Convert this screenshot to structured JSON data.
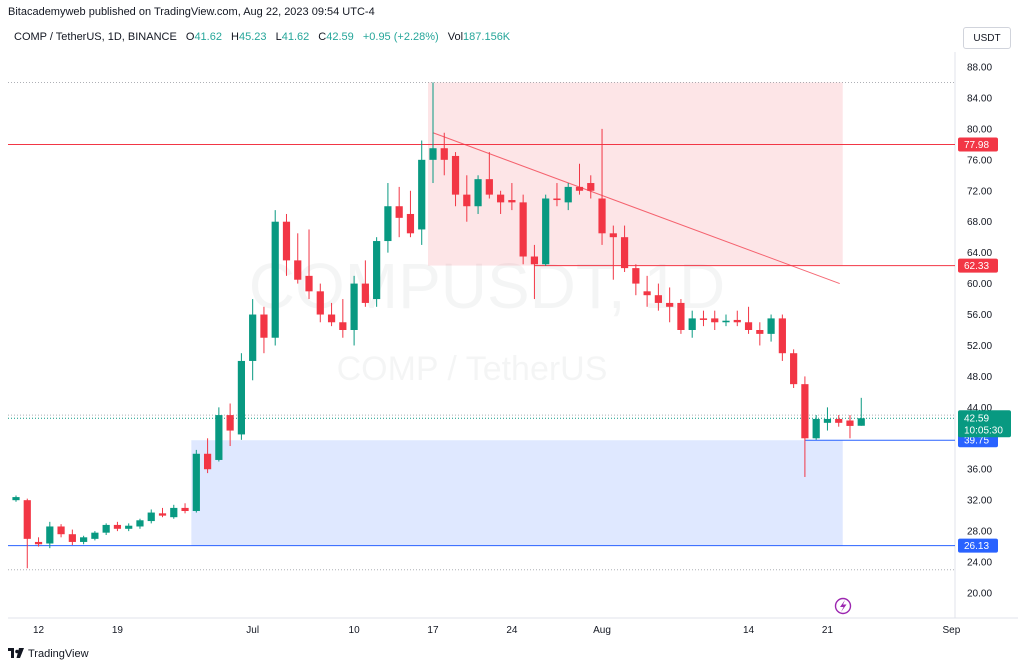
{
  "header": {
    "published": "Bitacademyweb published on TradingView.com, Aug 22, 2023 09:54 UTC-4"
  },
  "legend": {
    "symbol": "COMP / TetherUS, 1D, BINANCE",
    "o_label": "O",
    "o": "41.62",
    "h_label": "H",
    "h": "45.23",
    "l_label": "L",
    "l": "41.62",
    "c_label": "C",
    "c": "42.59",
    "change": "+0.95 (+2.28%)",
    "vol_label": "Vol",
    "vol": "187.156K"
  },
  "currency_button": "USDT",
  "watermark": {
    "ticker": "COMPUSDT, 1D",
    "name": "COMP / TetherUS"
  },
  "footer": {
    "brand": "TradingView"
  },
  "chart_data": {
    "type": "candlestick",
    "symbol": "COMP / TetherUS",
    "interval": "1D",
    "exchange": "BINANCE",
    "ylim": [
      18,
      90
    ],
    "y_ticks": [
      "88.00",
      "84.00",
      "80.00",
      "76.00",
      "72.00",
      "68.00",
      "64.00",
      "60.00",
      "56.00",
      "52.00",
      "48.00",
      "44.00",
      "40.00",
      "36.00",
      "32.00",
      "28.00",
      "24.00",
      "20.00"
    ],
    "x_ticks": [
      {
        "label": "12",
        "index": 2
      },
      {
        "label": "19",
        "index": 9
      },
      {
        "label": "Jul",
        "index": 21
      },
      {
        "label": "10",
        "index": 30
      },
      {
        "label": "17",
        "index": 37
      },
      {
        "label": "24",
        "index": 44
      },
      {
        "label": "Aug",
        "index": 52
      },
      {
        "label": "14",
        "index": 65
      },
      {
        "label": "21",
        "index": 72
      },
      {
        "label": "Sep",
        "index": 83
      }
    ],
    "candles": [
      {
        "o": 32.0,
        "h": 32.6,
        "l": 31.8,
        "c": 32.4
      },
      {
        "o": 32.0,
        "h": 32.2,
        "l": 23.2,
        "c": 27.0
      },
      {
        "o": 26.6,
        "h": 27.2,
        "l": 26.0,
        "c": 26.3
      },
      {
        "o": 26.4,
        "h": 29.2,
        "l": 25.8,
        "c": 28.6
      },
      {
        "o": 28.6,
        "h": 28.9,
        "l": 27.2,
        "c": 27.6
      },
      {
        "o": 27.6,
        "h": 28.2,
        "l": 26.2,
        "c": 26.6
      },
      {
        "o": 26.6,
        "h": 27.4,
        "l": 26.3,
        "c": 27.2
      },
      {
        "o": 27.0,
        "h": 28.0,
        "l": 26.8,
        "c": 27.8
      },
      {
        "o": 27.8,
        "h": 29.0,
        "l": 27.5,
        "c": 28.8
      },
      {
        "o": 28.8,
        "h": 29.2,
        "l": 28.0,
        "c": 28.3
      },
      {
        "o": 28.3,
        "h": 29.0,
        "l": 28.0,
        "c": 28.7
      },
      {
        "o": 28.6,
        "h": 29.6,
        "l": 28.3,
        "c": 29.4
      },
      {
        "o": 29.3,
        "h": 30.8,
        "l": 29.0,
        "c": 30.4
      },
      {
        "o": 30.3,
        "h": 31.0,
        "l": 29.8,
        "c": 30.0
      },
      {
        "o": 29.8,
        "h": 31.4,
        "l": 29.6,
        "c": 31.0
      },
      {
        "o": 31.0,
        "h": 31.6,
        "l": 30.3,
        "c": 30.6
      },
      {
        "o": 30.6,
        "h": 38.5,
        "l": 30.4,
        "c": 38.0
      },
      {
        "o": 38.0,
        "h": 40.0,
        "l": 35.5,
        "c": 36.0
      },
      {
        "o": 37.2,
        "h": 44.0,
        "l": 37.0,
        "c": 43.0
      },
      {
        "o": 43.0,
        "h": 44.5,
        "l": 39.0,
        "c": 41.0
      },
      {
        "o": 40.5,
        "h": 51.0,
        "l": 39.8,
        "c": 50.0
      },
      {
        "o": 50.0,
        "h": 58.0,
        "l": 47.5,
        "c": 56.0
      },
      {
        "o": 56.0,
        "h": 57.0,
        "l": 51.0,
        "c": 53.0
      },
      {
        "o": 53.0,
        "h": 69.5,
        "l": 52.0,
        "c": 68.0
      },
      {
        "o": 68.0,
        "h": 69.0,
        "l": 61.0,
        "c": 63.0
      },
      {
        "o": 63.0,
        "h": 66.5,
        "l": 60.0,
        "c": 60.5
      },
      {
        "o": 61.0,
        "h": 67.0,
        "l": 58.0,
        "c": 59.0
      },
      {
        "o": 59.0,
        "h": 60.0,
        "l": 55.0,
        "c": 56.0
      },
      {
        "o": 56.0,
        "h": 57.5,
        "l": 54.5,
        "c": 55.0
      },
      {
        "o": 55.0,
        "h": 58.0,
        "l": 53.0,
        "c": 54.0
      },
      {
        "o": 54.0,
        "h": 61.0,
        "l": 52.0,
        "c": 60.0
      },
      {
        "o": 60.0,
        "h": 63.0,
        "l": 57.0,
        "c": 57.5
      },
      {
        "o": 58.0,
        "h": 66.0,
        "l": 57.0,
        "c": 65.5
      },
      {
        "o": 65.5,
        "h": 73.0,
        "l": 64.0,
        "c": 70.0
      },
      {
        "o": 70.0,
        "h": 72.5,
        "l": 66.0,
        "c": 68.5
      },
      {
        "o": 69.0,
        "h": 72.0,
        "l": 66.0,
        "c": 66.5
      },
      {
        "o": 67.0,
        "h": 78.5,
        "l": 65.0,
        "c": 76.0
      },
      {
        "o": 76.0,
        "h": 86.0,
        "l": 73.0,
        "c": 77.5
      },
      {
        "o": 77.5,
        "h": 79.5,
        "l": 74.0,
        "c": 76.0
      },
      {
        "o": 76.5,
        "h": 77.0,
        "l": 70.0,
        "c": 71.5
      },
      {
        "o": 71.5,
        "h": 74.0,
        "l": 68.0,
        "c": 70.0
      },
      {
        "o": 70.0,
        "h": 74.0,
        "l": 69.0,
        "c": 73.5
      },
      {
        "o": 73.5,
        "h": 77.0,
        "l": 71.0,
        "c": 71.5
      },
      {
        "o": 71.5,
        "h": 72.0,
        "l": 69.0,
        "c": 70.5
      },
      {
        "o": 70.8,
        "h": 73.0,
        "l": 69.5,
        "c": 70.5
      },
      {
        "o": 70.5,
        "h": 71.5,
        "l": 62.5,
        "c": 63.5
      },
      {
        "o": 63.5,
        "h": 65.0,
        "l": 58.0,
        "c": 62.5
      },
      {
        "o": 62.5,
        "h": 71.5,
        "l": 62.3,
        "c": 71.0
      },
      {
        "o": 71.0,
        "h": 73.0,
        "l": 70.0,
        "c": 70.8
      },
      {
        "o": 70.5,
        "h": 73.0,
        "l": 69.5,
        "c": 72.5
      },
      {
        "o": 72.5,
        "h": 75.5,
        "l": 71.5,
        "c": 72.0
      },
      {
        "o": 73.0,
        "h": 74.0,
        "l": 71.0,
        "c": 72.0
      },
      {
        "o": 71.0,
        "h": 80.0,
        "l": 65.0,
        "c": 66.5
      },
      {
        "o": 66.5,
        "h": 67.5,
        "l": 60.5,
        "c": 66.0
      },
      {
        "o": 66.0,
        "h": 67.5,
        "l": 61.5,
        "c": 62.0
      },
      {
        "o": 62.0,
        "h": 62.5,
        "l": 58.5,
        "c": 60.0
      },
      {
        "o": 59.0,
        "h": 61.0,
        "l": 57.0,
        "c": 58.5
      },
      {
        "o": 58.5,
        "h": 60.0,
        "l": 56.5,
        "c": 57.5
      },
      {
        "o": 57.5,
        "h": 59.5,
        "l": 55.0,
        "c": 57.0
      },
      {
        "o": 57.5,
        "h": 58.0,
        "l": 53.5,
        "c": 54.0
      },
      {
        "o": 54.0,
        "h": 56.5,
        "l": 53.0,
        "c": 55.5
      },
      {
        "o": 55.5,
        "h": 56.5,
        "l": 54.5,
        "c": 55.3
      },
      {
        "o": 55.5,
        "h": 56.5,
        "l": 54.0,
        "c": 55.0
      },
      {
        "o": 55.0,
        "h": 56.0,
        "l": 54.5,
        "c": 55.2
      },
      {
        "o": 55.3,
        "h": 56.5,
        "l": 54.5,
        "c": 55.0
      },
      {
        "o": 55.0,
        "h": 57.0,
        "l": 53.5,
        "c": 54.0
      },
      {
        "o": 54.0,
        "h": 55.0,
        "l": 52.0,
        "c": 53.5
      },
      {
        "o": 53.5,
        "h": 56.0,
        "l": 52.5,
        "c": 55.5
      },
      {
        "o": 55.5,
        "h": 56.0,
        "l": 50.0,
        "c": 51.0
      },
      {
        "o": 51.0,
        "h": 51.5,
        "l": 46.5,
        "c": 47.0
      },
      {
        "o": 47.0,
        "h": 48.0,
        "l": 35.0,
        "c": 40.0
      },
      {
        "o": 40.0,
        "h": 43.0,
        "l": 39.8,
        "c": 42.5
      },
      {
        "o": 42.0,
        "h": 44.0,
        "l": 41.0,
        "c": 42.5
      },
      {
        "o": 42.5,
        "h": 43.0,
        "l": 41.5,
        "c": 42.0
      },
      {
        "o": 42.3,
        "h": 43.0,
        "l": 40.0,
        "c": 41.6
      },
      {
        "o": 41.62,
        "h": 45.23,
        "l": 41.62,
        "c": 42.59
      }
    ],
    "levels": [
      {
        "value": "77.98",
        "color": "#f23645"
      },
      {
        "value": "62.33",
        "color": "#f23645"
      },
      {
        "value": "39.75",
        "color": "#2962ff"
      },
      {
        "value": "26.13",
        "color": "#2962ff"
      }
    ],
    "zones": [
      {
        "name": "resistance",
        "from_index": 37,
        "to_index": 73,
        "low": 62.33,
        "high": 86.0,
        "color": "#f23645"
      },
      {
        "name": "support",
        "from_index": 16,
        "to_index": 73,
        "low": 26.13,
        "high": 39.75,
        "color": "#2962ff"
      }
    ],
    "trendline": {
      "from_index": 37,
      "from_value": 79.5,
      "to_index": 73,
      "to_value": 60.0,
      "color": "#f23645"
    },
    "dotted_levels": [
      86.0,
      43.0,
      23.0
    ],
    "last_price": {
      "value": "42.59",
      "countdown": "10:05:30",
      "color": "#089981"
    },
    "colors": {
      "up": "#089981",
      "down": "#f23645",
      "grid": "#f0f3fa"
    }
  }
}
